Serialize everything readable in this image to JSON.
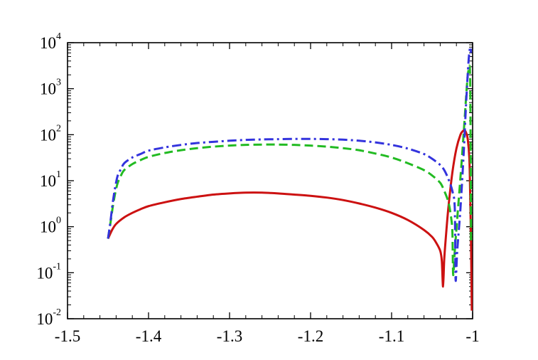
{
  "chart_data": {
    "type": "line",
    "title": "",
    "xlabel": "",
    "ylabel": "",
    "x_scale": "linear",
    "y_scale": "log",
    "xlim": [
      -1.5,
      -1.0
    ],
    "ylim": [
      0.01,
      10000
    ],
    "grid": false,
    "legend": "none",
    "x_ticks": [
      {
        "value": -1.5,
        "label": "-1.5"
      },
      {
        "value": -1.4,
        "label": "-1.4"
      },
      {
        "value": -1.3,
        "label": "-1.3"
      },
      {
        "value": -1.2,
        "label": "-1.2"
      },
      {
        "value": -1.1,
        "label": "-1.1"
      },
      {
        "value": -1.0,
        "label": "-1"
      }
    ],
    "y_ticks": [
      {
        "value": 0.01,
        "base": "10",
        "exp": "-2"
      },
      {
        "value": 0.1,
        "base": "10",
        "exp": "-1"
      },
      {
        "value": 1,
        "base": "10",
        "exp": "0"
      },
      {
        "value": 10,
        "base": "10",
        "exp": "1"
      },
      {
        "value": 100,
        "base": "10",
        "exp": "2"
      },
      {
        "value": 1000,
        "base": "10",
        "exp": "3"
      },
      {
        "value": 10000,
        "base": "10",
        "exp": "4"
      }
    ],
    "series": [
      {
        "color": "#cc1111",
        "dash": "solid",
        "x": [
          -1.45,
          -1.445,
          -1.44,
          -1.43,
          -1.42,
          -1.41,
          -1.4,
          -1.38,
          -1.36,
          -1.34,
          -1.32,
          -1.3,
          -1.28,
          -1.26,
          -1.24,
          -1.22,
          -1.2,
          -1.18,
          -1.16,
          -1.14,
          -1.12,
          -1.1,
          -1.08,
          -1.06,
          -1.05,
          -1.045,
          -1.04,
          -1.038,
          -1.0365,
          -1.035,
          -1.033,
          -1.03,
          -1.025,
          -1.02,
          -1.015,
          -1.012,
          -1.01,
          -1.008,
          -1.006,
          -1.004,
          -1.003,
          -1.002,
          -1.001
        ],
        "y": [
          0.55,
          0.85,
          1.15,
          1.6,
          2.0,
          2.4,
          2.8,
          3.4,
          4.0,
          4.5,
          5.0,
          5.3,
          5.5,
          5.5,
          5.3,
          5.0,
          4.7,
          4.3,
          3.8,
          3.2,
          2.6,
          2.0,
          1.4,
          0.85,
          0.6,
          0.45,
          0.3,
          0.18,
          0.05,
          0.2,
          0.6,
          2.5,
          15,
          50,
          100,
          120,
          125,
          110,
          80,
          30,
          5,
          0.5,
          0.015
        ]
      },
      {
        "color": "#22bb22",
        "dash": "dashed",
        "x": [
          -1.45,
          -1.447,
          -1.444,
          -1.441,
          -1.438,
          -1.434,
          -1.43,
          -1.42,
          -1.41,
          -1.4,
          -1.38,
          -1.36,
          -1.34,
          -1.32,
          -1.3,
          -1.28,
          -1.26,
          -1.24,
          -1.22,
          -1.2,
          -1.18,
          -1.16,
          -1.14,
          -1.12,
          -1.1,
          -1.08,
          -1.06,
          -1.05,
          -1.04,
          -1.035,
          -1.03,
          -1.027,
          -1.025,
          -1.024,
          -1.022,
          -1.018,
          -1.014,
          -1.01,
          -1.007,
          -1.005,
          -1.003,
          -1.002
        ],
        "y": [
          0.55,
          1.2,
          2.8,
          5.5,
          9,
          13,
          17,
          23,
          28,
          33,
          40,
          46,
          51,
          55,
          58,
          60,
          61,
          61,
          60,
          58,
          55,
          51,
          46,
          39,
          32,
          24,
          17,
          13,
          9,
          6,
          3.5,
          1.8,
          0.8,
          0.09,
          0.3,
          2.5,
          20,
          200,
          1200,
          2500,
          1500,
          0.5
        ]
      },
      {
        "color": "#3333dd",
        "dash": "dashdot",
        "x": [
          -1.45,
          -1.447,
          -1.444,
          -1.441,
          -1.438,
          -1.434,
          -1.43,
          -1.42,
          -1.41,
          -1.4,
          -1.38,
          -1.36,
          -1.34,
          -1.32,
          -1.3,
          -1.28,
          -1.26,
          -1.24,
          -1.22,
          -1.2,
          -1.18,
          -1.16,
          -1.14,
          -1.12,
          -1.1,
          -1.08,
          -1.06,
          -1.05,
          -1.04,
          -1.035,
          -1.03,
          -1.025,
          -1.022,
          -1.021,
          -1.019,
          -1.015,
          -1.011,
          -1.008,
          -1.005,
          -1.003,
          -1.002
        ],
        "y": [
          0.55,
          1.3,
          3.5,
          7.5,
          13,
          18,
          24,
          32,
          38,
          45,
          53,
          60,
          66,
          70,
          74,
          77,
          79,
          80,
          81,
          81,
          80,
          78,
          74,
          68,
          60,
          50,
          38,
          30,
          22,
          17,
          11,
          6,
          2.5,
          0.07,
          0.3,
          2.5,
          40,
          500,
          4000,
          8000,
          6000
        ]
      }
    ]
  }
}
